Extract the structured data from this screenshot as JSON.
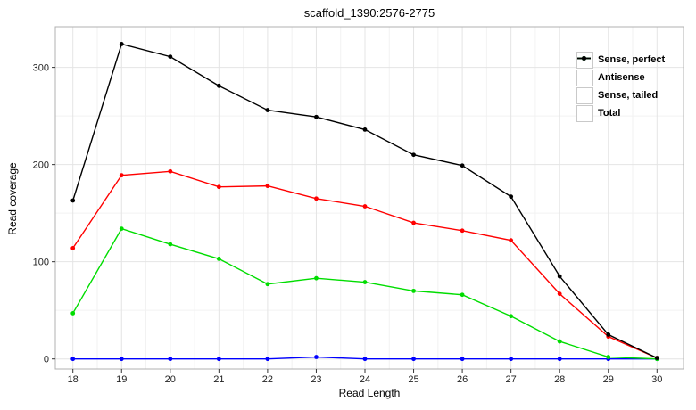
{
  "chart_data": {
    "type": "line",
    "title": "scaffold_1390:2576-2775",
    "xlabel": "Read Length",
    "ylabel": "Read coverage",
    "x": [
      18,
      19,
      20,
      21,
      22,
      23,
      24,
      25,
      26,
      27,
      28,
      29,
      30
    ],
    "yticks": [
      0,
      100,
      200,
      300
    ],
    "yminor": [
      50,
      150,
      250
    ],
    "ylim": [
      -11,
      345
    ],
    "grid": "major+minor",
    "legend_position": "top-right-inside",
    "series": [
      {
        "name": "Sense, perfect",
        "color": "#ff0000",
        "values": [
          114,
          189,
          193,
          177,
          178,
          165,
          157,
          140,
          132,
          122,
          67,
          23,
          1
        ]
      },
      {
        "name": "Antisense",
        "color": "#0000ff",
        "values": [
          0,
          0,
          0,
          0,
          0,
          2,
          0,
          0,
          0,
          0,
          0,
          0,
          0
        ]
      },
      {
        "name": "Sense, tailed",
        "color": "#00dd00",
        "values": [
          47,
          134,
          118,
          103,
          77,
          83,
          79,
          70,
          66,
          44,
          18,
          2,
          0
        ]
      },
      {
        "name": "Total",
        "color": "#000000",
        "values": [
          163,
          324,
          311,
          281,
          256,
          249,
          236,
          210,
          199,
          167,
          85,
          25,
          1
        ]
      }
    ],
    "colors": {
      "panel_border": "#b0b0b0",
      "grid_major": "#e4e4e4",
      "grid_minor": "#f2f2f2",
      "tick": "#333333"
    }
  }
}
